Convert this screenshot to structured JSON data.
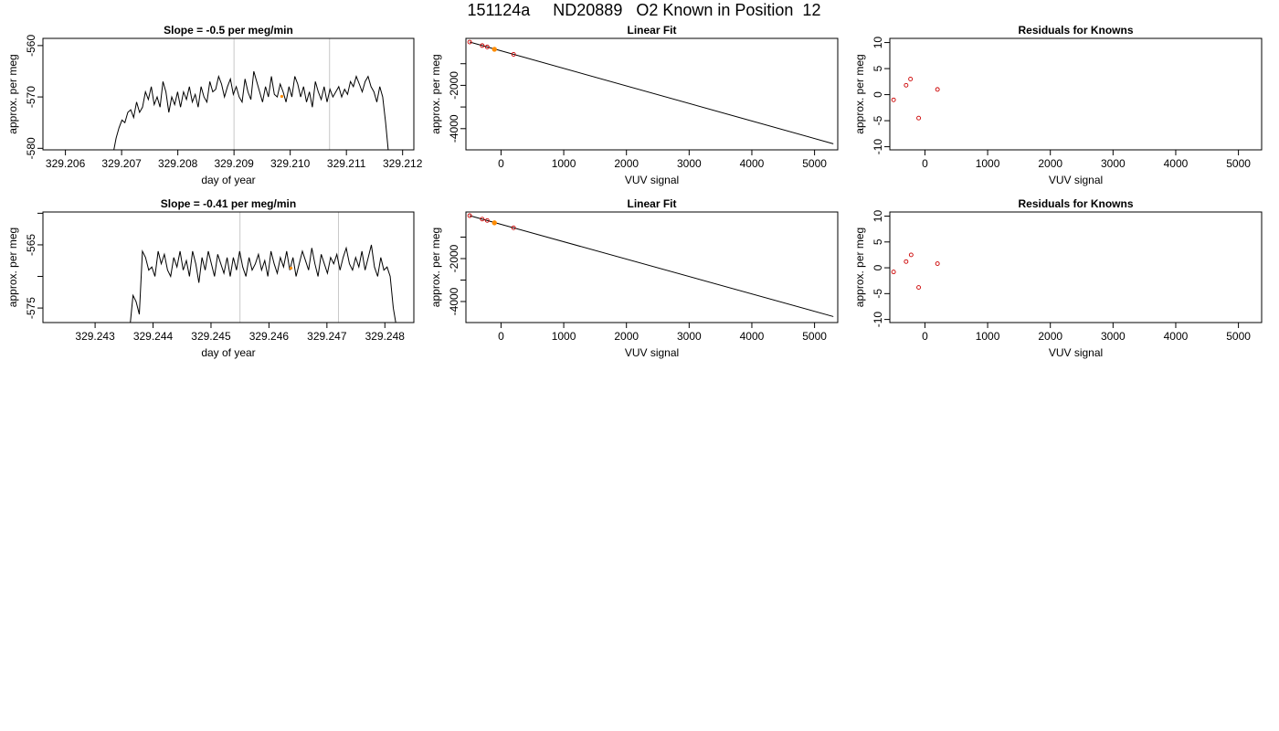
{
  "title": "151124a     ND20889   O2 Known in Position  12",
  "colors": {
    "line": "#000000",
    "marker": "#cc0000",
    "highlight": "#ff8c00",
    "vline": "#c8c8c8"
  },
  "chart_data": [
    {
      "type": "line",
      "title": "Slope =  -0.5  per meg/min",
      "xlabel": "day of year",
      "ylabel": "approx. per meg",
      "xlim": [
        329.2056,
        329.2122
      ],
      "ylim": [
        -580.3,
        -558.6
      ],
      "x_ticks": [
        "329.206",
        "329.207",
        "329.208",
        "329.209",
        "329.210",
        "329.211",
        "329.212"
      ],
      "y_ticks": [
        "-580",
        "-570",
        "-560"
      ],
      "x_ticks_pos": [
        329.206,
        329.207,
        329.208,
        329.209,
        329.21,
        329.211,
        329.212
      ],
      "y_ticks_pos": [
        -580,
        -570,
        -560
      ],
      "vlines": [
        329.209,
        329.2107
      ],
      "series_start": 329.20685,
      "series_end": 329.21175,
      "marker": [
        329.20985,
        -569.9
      ],
      "y": [
        -581,
        -578,
        -576,
        -574.5,
        -575,
        -573,
        -572.5,
        -574,
        -571,
        -573,
        -572,
        -569,
        -570.5,
        -568,
        -571.5,
        -570,
        -572,
        -567,
        -569,
        -573,
        -570,
        -571.5,
        -569,
        -572,
        -569,
        -570.5,
        -568,
        -571,
        -569.5,
        -572,
        -568,
        -570,
        -571,
        -567,
        -569,
        -568.5,
        -566,
        -567.5,
        -570,
        -568,
        -566.5,
        -569.5,
        -568,
        -570,
        -571,
        -566.5,
        -569,
        -570.5,
        -565,
        -567,
        -569,
        -571,
        -568,
        -570,
        -566,
        -569.5,
        -570,
        -567.5,
        -569,
        -571,
        -568,
        -570,
        -566,
        -567.5,
        -570,
        -568,
        -571,
        -569,
        -572,
        -567,
        -569,
        -570.5,
        -568,
        -571,
        -568.5,
        -570,
        -569,
        -568,
        -570,
        -568.5,
        -569.5,
        -567,
        -568,
        -566,
        -567.5,
        -569,
        -567,
        -566,
        -568,
        -569,
        -571,
        -568,
        -570,
        -575,
        -581
      ]
    },
    {
      "type": "scatter",
      "title": "Linear Fit",
      "xlabel": "VUV signal",
      "ylabel": "approx. per meg",
      "xlim": [
        -560,
        5370
      ],
      "ylim": [
        -4980,
        170
      ],
      "x_ticks": [
        "0",
        "1000",
        "2000",
        "3000",
        "4000",
        "5000"
      ],
      "y_ticks": [
        "-4000",
        "-2000"
      ],
      "x_ticks_pos": [
        0,
        1000,
        2000,
        3000,
        4000,
        5000
      ],
      "y_ticks_pos": [
        -4000,
        -2000
      ],
      "minor_y_ticks": [
        -3000,
        -1000
      ],
      "fit_line": [
        [
          -500,
          0
        ],
        [
          5300,
          -4700
        ]
      ],
      "points": [
        [
          -500,
          0
        ],
        [
          -300,
          -162
        ],
        [
          -220,
          -226
        ],
        [
          200,
          -567
        ]
      ],
      "highlight": [
        [
          -105,
          -335
        ]
      ]
    },
    {
      "type": "scatter",
      "title": "Residuals for Knowns",
      "xlabel": "VUV signal",
      "ylabel": "approx. per meg",
      "xlim": [
        -560,
        5370
      ],
      "ylim": [
        -10.6,
        10.8
      ],
      "x_ticks": [
        "0",
        "1000",
        "2000",
        "3000",
        "4000",
        "5000"
      ],
      "y_ticks": [
        "-10",
        "-5",
        "0",
        "5",
        "10"
      ],
      "x_ticks_pos": [
        0,
        1000,
        2000,
        3000,
        4000,
        5000
      ],
      "y_ticks_pos": [
        -10,
        -5,
        0,
        5,
        10
      ],
      "points": [
        [
          -500,
          -1
        ],
        [
          -300,
          1.8
        ],
        [
          -230,
          3
        ],
        [
          -100,
          -4.5
        ],
        [
          200,
          1
        ]
      ]
    },
    {
      "type": "line",
      "title": "Slope =  -0.41  per meg/min",
      "xlabel": "day of year",
      "ylabel": "approx. per meg",
      "xlim": [
        329.2421,
        329.2485
      ],
      "ylim": [
        -577.3,
        -559.8
      ],
      "x_ticks": [
        "329.243",
        "329.244",
        "329.245",
        "329.246",
        "329.247",
        "329.248"
      ],
      "y_ticks": [
        "-575",
        "-565"
      ],
      "x_ticks_pos": [
        329.243,
        329.244,
        329.245,
        329.246,
        329.247,
        329.248
      ],
      "y_ticks_pos": [
        -575,
        -565
      ],
      "minor_y_ticks": [
        -570,
        -560
      ],
      "vlines": [
        329.2455,
        329.2472
      ],
      "series_start": 329.2436,
      "series_end": 329.2482,
      "marker": [
        329.24638,
        -568.7
      ],
      "y": [
        -578,
        -573,
        -574,
        -576,
        -566,
        -567,
        -569,
        -568.5,
        -570,
        -566,
        -568,
        -566.5,
        -569,
        -570,
        -567,
        -568.5,
        -566,
        -569,
        -567.5,
        -570,
        -566,
        -568,
        -571,
        -567,
        -569,
        -566,
        -568,
        -570,
        -566.5,
        -568,
        -569.5,
        -567,
        -570,
        -567,
        -569,
        -566,
        -568.5,
        -570,
        -567,
        -569,
        -568,
        -566.5,
        -569,
        -567.5,
        -570,
        -566,
        -568,
        -569.5,
        -567,
        -568.5,
        -566,
        -569,
        -567,
        -570,
        -568,
        -566,
        -567.5,
        -569,
        -565.5,
        -568,
        -570,
        -566.5,
        -568,
        -569.5,
        -567,
        -568,
        -566.5,
        -569,
        -567,
        -565.5,
        -568,
        -569,
        -567,
        -568.5,
        -566,
        -569,
        -567,
        -565,
        -568.5,
        -570,
        -567,
        -569,
        -568.5,
        -570,
        -575,
        -578
      ]
    },
    {
      "type": "scatter",
      "title": "Linear Fit",
      "xlabel": "VUV signal",
      "ylabel": "approx. per meg",
      "xlim": [
        -560,
        5370
      ],
      "ylim": [
        -4980,
        170
      ],
      "x_ticks": [
        "0",
        "1000",
        "2000",
        "3000",
        "4000",
        "5000"
      ],
      "y_ticks": [
        "-4000",
        "-2000"
      ],
      "x_ticks_pos": [
        0,
        1000,
        2000,
        3000,
        4000,
        5000
      ],
      "y_ticks_pos": [
        -4000,
        -2000
      ],
      "minor_y_ticks": [
        -3000,
        -1000
      ],
      "fit_line": [
        [
          -500,
          0
        ],
        [
          5300,
          -4700
        ]
      ],
      "points": [
        [
          -500,
          0
        ],
        [
          -300,
          -162
        ],
        [
          -220,
          -226
        ],
        [
          200,
          -567
        ]
      ],
      "highlight": [
        [
          -105,
          -335
        ]
      ]
    },
    {
      "type": "scatter",
      "title": "Residuals for Knowns",
      "xlabel": "VUV signal",
      "ylabel": "approx. per meg",
      "xlim": [
        -560,
        5370
      ],
      "ylim": [
        -10.6,
        10.8
      ],
      "x_ticks": [
        "0",
        "1000",
        "2000",
        "3000",
        "4000",
        "5000"
      ],
      "y_ticks": [
        "-10",
        "-5",
        "0",
        "5",
        "10"
      ],
      "x_ticks_pos": [
        0,
        1000,
        2000,
        3000,
        4000,
        5000
      ],
      "y_ticks_pos": [
        -10,
        -5,
        0,
        5,
        10
      ],
      "points": [
        [
          -500,
          -0.8
        ],
        [
          -300,
          1.2
        ],
        [
          -220,
          2.5
        ],
        [
          -100,
          -3.8
        ],
        [
          200,
          0.8
        ]
      ]
    }
  ]
}
